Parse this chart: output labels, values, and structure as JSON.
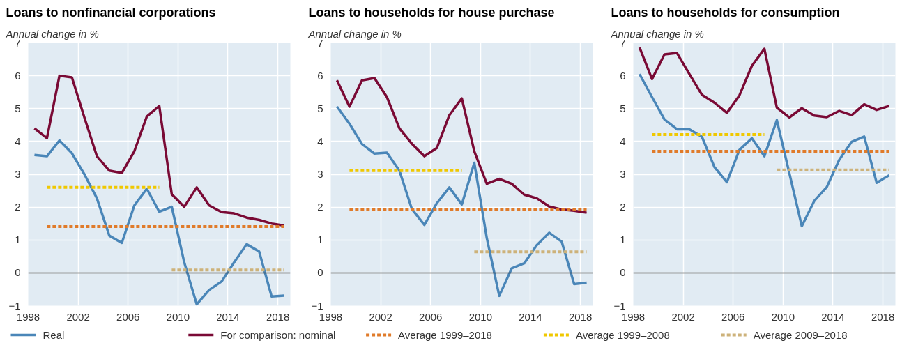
{
  "chart_data": [
    {
      "type": "line",
      "title": "Loans to nonfinancial corporations",
      "subtitle": "Annual change in %",
      "x": [
        1998.5,
        1999.5,
        2000.5,
        2001.5,
        2002.5,
        2003.5,
        2004.5,
        2005.5,
        2006.5,
        2007.5,
        2008.5,
        2009.5,
        2010.5,
        2011.5,
        2012.5,
        2013.5,
        2014.5,
        2015.5,
        2016.5,
        2017.5,
        2018.5
      ],
      "xlim": [
        1998,
        2019
      ],
      "xticks": [
        1998,
        2002,
        2006,
        2010,
        2014,
        2018
      ],
      "ylim": [
        -1,
        7
      ],
      "yticks": [
        -1,
        0,
        1,
        2,
        3,
        4,
        5,
        6,
        7
      ],
      "grid": true,
      "legend": "bottom",
      "ref_lines": [
        {
          "axis": "y",
          "value": 0,
          "color": "#404040"
        }
      ],
      "series": [
        {
          "name": "Real",
          "color": "#4a86b8",
          "line_style": "solid",
          "values": [
            3.59,
            3.55,
            4.03,
            3.64,
            3.0,
            2.27,
            1.13,
            0.91,
            2.05,
            2.56,
            1.86,
            2.01,
            0.32,
            -0.96,
            -0.52,
            -0.26,
            0.32,
            0.87,
            0.65,
            -0.72,
            -0.69
          ]
        },
        {
          "name": "For comparison: nominal",
          "color": "#7a0a35",
          "line_style": "solid",
          "values": [
            4.4,
            4.1,
            6.0,
            5.95,
            4.73,
            3.55,
            3.11,
            3.04,
            3.7,
            4.76,
            5.08,
            2.39,
            2.01,
            2.6,
            2.05,
            1.85,
            1.81,
            1.68,
            1.61,
            1.5,
            1.44
          ]
        },
        {
          "name": "Average 1999–2018",
          "color": "#e07b2a",
          "line_style": "dashed",
          "x": [
            1999.5,
            2018.5
          ],
          "values": [
            1.41,
            1.41
          ]
        },
        {
          "name": "Average 1999–2008",
          "color": "#f0c800",
          "line_style": "dashed",
          "x": [
            1999.5,
            2008.5
          ],
          "values": [
            2.6,
            2.6
          ]
        },
        {
          "name": "Average 2009–2018",
          "color": "#cdb27a",
          "line_style": "dashed",
          "x": [
            2009.5,
            2018.5
          ],
          "values": [
            0.09,
            0.09
          ]
        }
      ]
    },
    {
      "type": "line",
      "title": "Loans to households for house purchase",
      "subtitle": "Annual change in %",
      "x": [
        1998.5,
        1999.5,
        2000.5,
        2001.5,
        2002.5,
        2003.5,
        2004.5,
        2005.5,
        2006.5,
        2007.5,
        2008.5,
        2009.5,
        2010.5,
        2011.5,
        2012.5,
        2013.5,
        2014.5,
        2015.5,
        2016.5,
        2017.5,
        2018.5
      ],
      "xlim": [
        1998,
        2019
      ],
      "xticks": [
        1998,
        2002,
        2006,
        2010,
        2014,
        2018
      ],
      "ylim": [
        -1,
        7
      ],
      "yticks": [
        -1,
        0,
        1,
        2,
        3,
        4,
        5,
        6,
        7
      ],
      "grid": true,
      "ref_lines": [
        {
          "axis": "y",
          "value": 0,
          "color": "#404040"
        }
      ],
      "series": [
        {
          "color": "#4a86b8",
          "line_style": "solid",
          "values": [
            5.06,
            4.54,
            3.92,
            3.63,
            3.66,
            3.11,
            1.94,
            1.46,
            2.12,
            2.6,
            2.08,
            3.35,
            1.06,
            -0.7,
            0.14,
            0.29,
            0.84,
            1.22,
            0.95,
            -0.34,
            -0.3
          ]
        },
        {
          "color": "#7a0a35",
          "line_style": "solid",
          "values": [
            5.86,
            5.06,
            5.86,
            5.93,
            5.35,
            4.4,
            3.93,
            3.55,
            3.8,
            4.8,
            5.31,
            3.7,
            2.71,
            2.86,
            2.71,
            2.38,
            2.27,
            2.02,
            1.93,
            1.89,
            1.83
          ]
        },
        {
          "color": "#e07b2a",
          "line_style": "dashed",
          "x": [
            1999.5,
            2018.5
          ],
          "values": [
            1.93,
            1.93
          ]
        },
        {
          "color": "#f0c800",
          "line_style": "dashed",
          "x": [
            1999.5,
            2008.5
          ],
          "values": [
            3.11,
            3.11
          ]
        },
        {
          "color": "#cdb27a",
          "line_style": "dashed",
          "x": [
            2009.5,
            2018.5
          ],
          "values": [
            0.64,
            0.64
          ]
        }
      ]
    },
    {
      "type": "line",
      "title": "Loans to households for consumption",
      "subtitle": "Annual change in %",
      "x": [
        1998.5,
        1999.5,
        2000.5,
        2001.5,
        2002.5,
        2003.5,
        2004.5,
        2005.5,
        2006.5,
        2007.5,
        2008.5,
        2009.5,
        2010.5,
        2011.5,
        2012.5,
        2013.5,
        2014.5,
        2015.5,
        2016.5,
        2017.5,
        2018.5
      ],
      "xlim": [
        1998,
        2019
      ],
      "xticks": [
        1998,
        2002,
        2006,
        2010,
        2014,
        2018
      ],
      "ylim": [
        -1,
        7
      ],
      "yticks": [
        -1,
        0,
        1,
        2,
        3,
        4,
        5,
        6,
        7
      ],
      "grid": true,
      "ref_lines": [
        {
          "axis": "y",
          "value": 0,
          "color": "#404040"
        }
      ],
      "series": [
        {
          "color": "#4a86b8",
          "line_style": "solid",
          "values": [
            6.05,
            5.35,
            4.67,
            4.37,
            4.37,
            4.14,
            3.22,
            2.76,
            3.74,
            4.1,
            3.55,
            4.65,
            3.04,
            1.42,
            2.19,
            2.61,
            3.44,
            3.99,
            4.15,
            2.74,
            2.97
          ]
        },
        {
          "color": "#7a0a35",
          "line_style": "solid",
          "values": [
            6.86,
            5.9,
            6.65,
            6.69,
            6.05,
            5.42,
            5.18,
            4.87,
            5.4,
            6.3,
            6.82,
            5.03,
            4.73,
            5.01,
            4.79,
            4.74,
            4.93,
            4.8,
            5.13,
            4.96,
            5.08
          ]
        },
        {
          "color": "#e07b2a",
          "line_style": "dashed",
          "x": [
            1999.5,
            2018.5
          ],
          "values": [
            3.7,
            3.7
          ]
        },
        {
          "color": "#f0c800",
          "line_style": "dashed",
          "x": [
            1999.5,
            2008.5
          ],
          "values": [
            4.21,
            4.21
          ]
        },
        {
          "color": "#cdb27a",
          "line_style": "dashed",
          "x": [
            2009.5,
            2018.5
          ],
          "values": [
            3.13,
            3.13
          ]
        }
      ]
    }
  ]
}
